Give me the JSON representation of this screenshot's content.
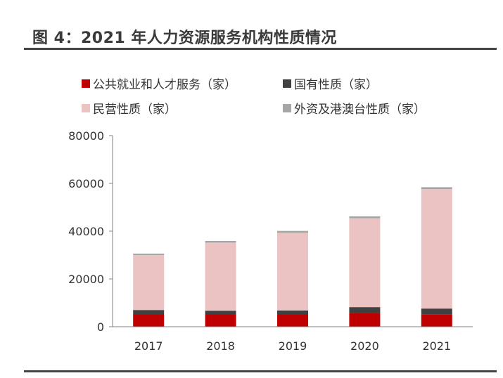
{
  "header": {
    "title": "图 4：2021 年人力资源服务机构性质情况"
  },
  "chart_data": {
    "type": "bar",
    "stacked": true,
    "title": "图 4：2021 年人力资源服务机构性质情况",
    "xlabel": "",
    "ylabel": "",
    "categories": [
      "2017",
      "2018",
      "2019",
      "2020",
      "2021"
    ],
    "ylim": [
      0,
      80000
    ],
    "yticks": [
      0,
      20000,
      40000,
      60000,
      80000
    ],
    "ytick_labels": [
      "0",
      "20000",
      "40000",
      "60000",
      "80000"
    ],
    "grid": false,
    "legend_position": "top",
    "series": [
      {
        "name": "公共就业和人才服务（家）",
        "color": "#c00000",
        "values": [
          5000,
          5000,
          5000,
          5600,
          5200
        ]
      },
      {
        "name": "国有性质（家）",
        "color": "#404040",
        "values": [
          2000,
          1700,
          1800,
          2600,
          2400
        ]
      },
      {
        "name": "民营性质（家）",
        "color": "#ecc3c3",
        "values": [
          23000,
          28500,
          32500,
          37200,
          50000
        ]
      },
      {
        "name": "外资及港澳台性质（家）",
        "color": "#a6a6a6",
        "values": [
          600,
          700,
          800,
          800,
          800
        ]
      }
    ]
  }
}
